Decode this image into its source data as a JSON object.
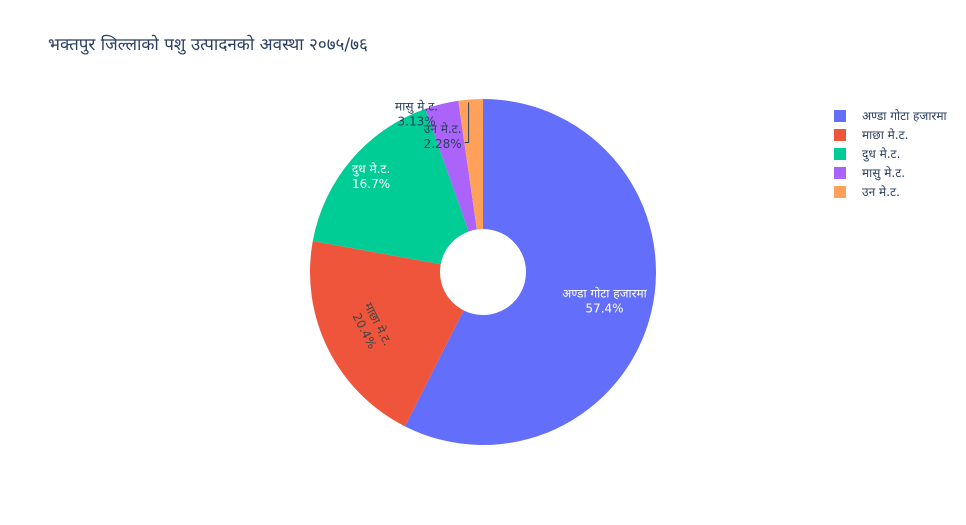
{
  "chart_data": {
    "type": "pie",
    "title": "भक्तपुर जिल्लाको पशु उत्पादनको अवस्था २०७५/७६",
    "hole": true,
    "labels": [
      "अण्डा गोटा हजारमा",
      "माछा मे.ट.",
      "दुध मे.ट.",
      "मासु मे.ट.",
      "उन मे.ट."
    ],
    "values": [
      57.4,
      20.4,
      16.7,
      3.13,
      2.28
    ],
    "percent_labels": [
      "57.4%",
      "20.4%",
      "16.7%",
      "3.13%",
      "2.28%"
    ],
    "colors": [
      "#636efa",
      "#EF553B",
      "#00cc96",
      "#ab63fa",
      "#FFA15A"
    ],
    "legend_position": "top-right",
    "legend": [
      "अण्डा गोटा हजारमा",
      "माछा मे.ट.",
      "दुध मे.ट.",
      "मासु मे.ट.",
      "उन मे.ट."
    ]
  }
}
